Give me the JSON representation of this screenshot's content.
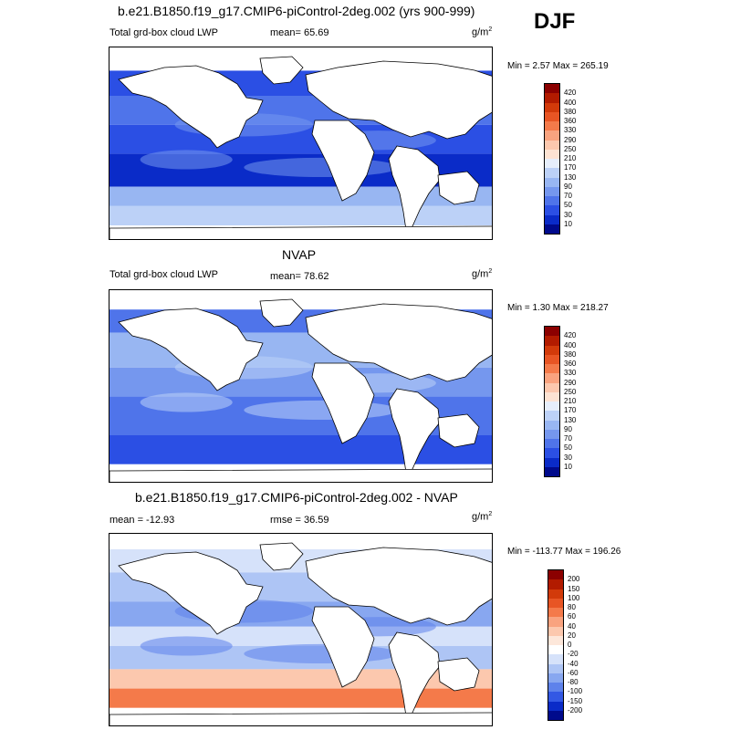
{
  "season": "DJF",
  "top_title": "b.e21.B1850.f19_g17.CMIP6-piControl-2deg.002 (yrs 900-999)",
  "obs_title": "NVAP",
  "diff_title": "b.e21.B1850.f19_g17.CMIP6-piControl-2deg.002 - NVAP",
  "units_base": "g/m",
  "units_exp": "2",
  "panels": [
    {
      "name": "model",
      "variable": "Total grd-box cloud LWP",
      "mean_label": "mean=  65.69",
      "minmax": "Min =   2.57 Max = 265.19"
    },
    {
      "name": "obs",
      "variable": "Total grd-box cloud LWP",
      "mean_label": "mean=  78.62",
      "minmax": "Min =   1.30 Max = 218.27"
    },
    {
      "name": "diff",
      "variable": "mean = -12.93",
      "mean_label": "rmse =  36.59",
      "minmax": "Min = -113.77 Max = 196.26"
    }
  ],
  "chart_data": [
    {
      "type": "heatmap",
      "title": "b.e21.B1850.f19_g17.CMIP6-piControl-2deg.002 (yrs 900-999)",
      "variable": "Total grd-box cloud LWP",
      "units": "g/m2",
      "mean": 65.69,
      "min": 2.57,
      "max": 265.19,
      "colorbar_levels": [
        420,
        400,
        380,
        360,
        330,
        290,
        250,
        210,
        170,
        130,
        90,
        70,
        50,
        30,
        10
      ],
      "colorbar_colors": [
        "#8b0000",
        "#b21b00",
        "#d23a0a",
        "#e85524",
        "#f47a4a",
        "#f9a37f",
        "#fcc8ae",
        "#fde3d3",
        "#e6eefb",
        "#bcd1f7",
        "#98b6f2",
        "#7597ee",
        "#4f74ea",
        "#2b4fe4",
        "#0a2bc8",
        "#000a8c"
      ]
    },
    {
      "type": "heatmap",
      "title": "NVAP",
      "variable": "Total grd-box cloud LWP",
      "units": "g/m2",
      "mean": 78.62,
      "min": 1.3,
      "max": 218.27,
      "colorbar_levels": [
        420,
        400,
        380,
        360,
        330,
        290,
        250,
        210,
        170,
        130,
        90,
        70,
        50,
        30,
        10
      ],
      "colorbar_colors": [
        "#8b0000",
        "#b21b00",
        "#d23a0a",
        "#e85524",
        "#f47a4a",
        "#f9a37f",
        "#fcc8ae",
        "#fde3d3",
        "#e6eefb",
        "#bcd1f7",
        "#98b6f2",
        "#7597ee",
        "#4f74ea",
        "#2b4fe4",
        "#0a2bc8",
        "#000a8c"
      ]
    },
    {
      "type": "heatmap",
      "title": "b.e21.B1850.f19_g17.CMIP6-piControl-2deg.002 - NVAP",
      "units": "g/m2",
      "mean": -12.93,
      "rmse": 36.59,
      "min": -113.77,
      "max": 196.26,
      "colorbar_levels": [
        200,
        150,
        100,
        80,
        60,
        40,
        20,
        0,
        -20,
        -40,
        -60,
        -80,
        -100,
        -150,
        -200
      ],
      "colorbar_colors": [
        "#8b0000",
        "#b21b00",
        "#d23a0a",
        "#e85524",
        "#f47a4a",
        "#f9a37f",
        "#fcc8ae",
        "#fde7da",
        "#ffffff",
        "#d6e2fa",
        "#aec5f5",
        "#88a7f0",
        "#5e82eb",
        "#3358e4",
        "#0a2bc8",
        "#000a8c"
      ]
    }
  ]
}
